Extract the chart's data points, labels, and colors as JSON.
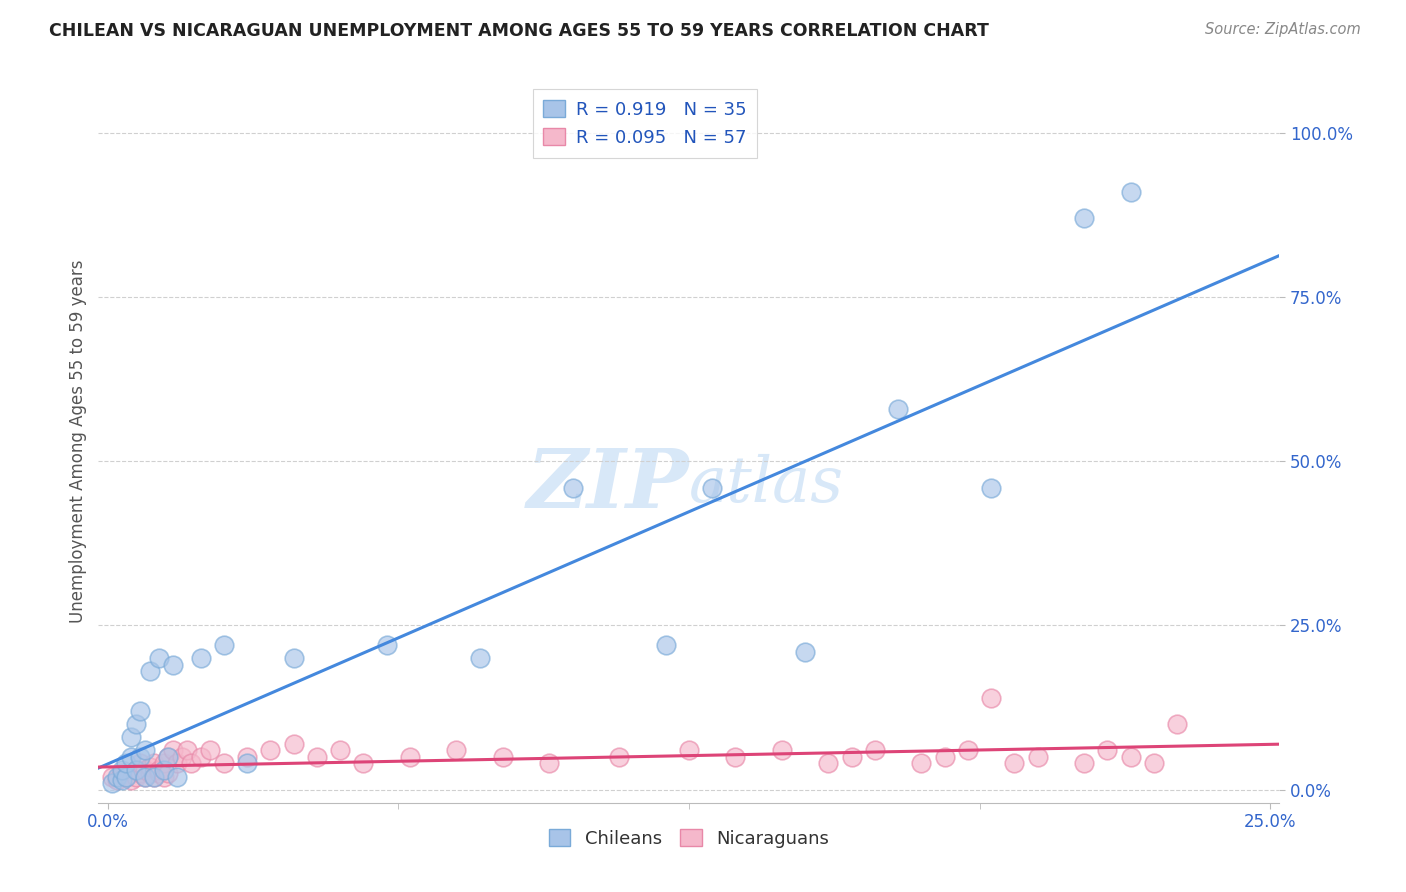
{
  "title": "CHILEAN VS NICARAGUAN UNEMPLOYMENT AMONG AGES 55 TO 59 YEARS CORRELATION CHART",
  "source": "Source: ZipAtlas.com",
  "ylabel_label": "Unemployment Among Ages 55 to 59 years",
  "ytick_labels": [
    "0.0%",
    "25.0%",
    "50.0%",
    "75.0%",
    "100.0%"
  ],
  "ytick_values": [
    0.0,
    0.25,
    0.5,
    0.75,
    1.0
  ],
  "xlim": [
    -0.002,
    0.252
  ],
  "ylim": [
    -0.02,
    1.08
  ],
  "chilean_R": 0.919,
  "chilean_N": 35,
  "nicaraguan_R": 0.095,
  "nicaraguan_N": 57,
  "chilean_color": "#a8c4e8",
  "chilean_edge_color": "#7aaad8",
  "nicaraguan_color": "#f5b8cb",
  "nicaraguan_edge_color": "#e888a8",
  "chilean_line_color": "#4488dd",
  "nicaraguan_line_color": "#dd4477",
  "background_color": "#ffffff",
  "grid_color": "#d0d0d0",
  "title_color": "#222222",
  "legend_text_color": "#2255bb",
  "watermark_color": "#d8e8f8",
  "chilean_x": [
    0.001,
    0.002,
    0.003,
    0.003,
    0.004,
    0.004,
    0.005,
    0.005,
    0.006,
    0.006,
    0.007,
    0.007,
    0.008,
    0.008,
    0.009,
    0.01,
    0.011,
    0.012,
    0.013,
    0.014,
    0.015,
    0.02,
    0.025,
    0.03,
    0.04,
    0.06,
    0.08,
    0.1,
    0.12,
    0.13,
    0.15,
    0.17,
    0.19,
    0.21,
    0.22
  ],
  "chilean_y": [
    0.01,
    0.02,
    0.015,
    0.03,
    0.02,
    0.04,
    0.05,
    0.08,
    0.1,
    0.03,
    0.05,
    0.12,
    0.02,
    0.06,
    0.18,
    0.02,
    0.2,
    0.03,
    0.05,
    0.19,
    0.02,
    0.2,
    0.22,
    0.04,
    0.2,
    0.22,
    0.2,
    0.46,
    0.22,
    0.46,
    0.21,
    0.58,
    0.46,
    0.87,
    0.91
  ],
  "nicaraguan_x": [
    0.001,
    0.002,
    0.003,
    0.004,
    0.005,
    0.006,
    0.006,
    0.007,
    0.007,
    0.008,
    0.008,
    0.009,
    0.009,
    0.01,
    0.01,
    0.011,
    0.011,
    0.012,
    0.012,
    0.013,
    0.013,
    0.014,
    0.015,
    0.016,
    0.017,
    0.018,
    0.02,
    0.022,
    0.025,
    0.03,
    0.035,
    0.04,
    0.045,
    0.05,
    0.055,
    0.065,
    0.075,
    0.085,
    0.095,
    0.11,
    0.125,
    0.135,
    0.145,
    0.155,
    0.16,
    0.165,
    0.175,
    0.18,
    0.185,
    0.19,
    0.195,
    0.2,
    0.21,
    0.215,
    0.22,
    0.225,
    0.23
  ],
  "nicaraguan_y": [
    0.02,
    0.015,
    0.025,
    0.02,
    0.015,
    0.03,
    0.02,
    0.025,
    0.04,
    0.02,
    0.03,
    0.025,
    0.035,
    0.02,
    0.04,
    0.025,
    0.03,
    0.02,
    0.04,
    0.025,
    0.05,
    0.06,
    0.04,
    0.05,
    0.06,
    0.04,
    0.05,
    0.06,
    0.04,
    0.05,
    0.06,
    0.07,
    0.05,
    0.06,
    0.04,
    0.05,
    0.06,
    0.05,
    0.04,
    0.05,
    0.06,
    0.05,
    0.06,
    0.04,
    0.05,
    0.06,
    0.04,
    0.05,
    0.06,
    0.14,
    0.04,
    0.05,
    0.04,
    0.06,
    0.05,
    0.04,
    0.1
  ]
}
